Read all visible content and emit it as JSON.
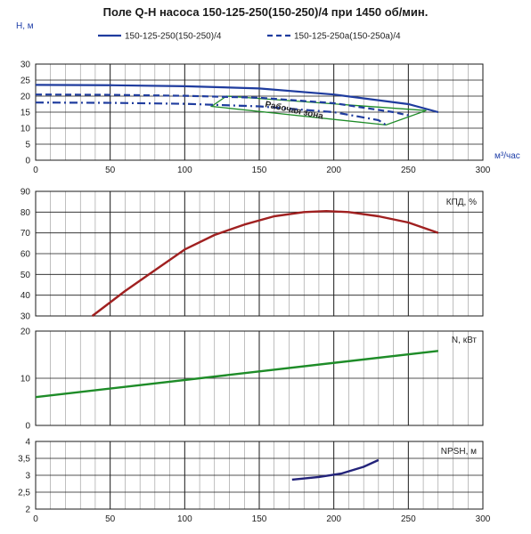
{
  "title": "Поле Q-H насоса 150-125-250(150-250)/4 при 1450 об/мин.",
  "colors": {
    "h_main": "#1f3c9e",
    "h_alt": "#1f3c9e",
    "eff": "#a02020",
    "power": "#1e8c28",
    "npsh": "#23237a",
    "zone": "#1e8c28",
    "grid": "#1a1a1a",
    "minor_grid": "#7f7f7f"
  },
  "chart_data": [
    {
      "type": "line",
      "xlabel": "м³/час",
      "ylabel": "Н, м",
      "xlim": [
        0,
        300
      ],
      "ylim": [
        0,
        30
      ],
      "x_ticks": [
        "0",
        "50",
        "100",
        "150",
        "200",
        "250",
        "300"
      ],
      "y_ticks": [
        "0",
        "5",
        "10",
        "15",
        "20",
        "25",
        "30"
      ],
      "grid": true,
      "legend": "top",
      "series": [
        {
          "name": "150-125-250(150-250)/4",
          "style": "solid",
          "points": [
            [
              0,
              23.5
            ],
            [
              50,
              23.4
            ],
            [
              100,
              23.1
            ],
            [
              150,
              22.4
            ],
            [
              200,
              20.5
            ],
            [
              250,
              17.5
            ],
            [
              270,
              15.0
            ]
          ]
        },
        {
          "name": "150-125-250а(150-250а)/4",
          "style": "dashed",
          "points": [
            [
              0,
              20.5
            ],
            [
              50,
              20.4
            ],
            [
              100,
              20.1
            ],
            [
              150,
              19.5
            ],
            [
              200,
              17.8
            ],
            [
              240,
              15.0
            ],
            [
              250,
              14.0
            ]
          ]
        },
        {
          "name": "",
          "style": "dashed",
          "points": [
            [
              0,
              18.0
            ],
            [
              50,
              17.9
            ],
            [
              100,
              17.6
            ],
            [
              150,
              16.8
            ],
            [
              200,
              15.0
            ],
            [
              230,
              12.5
            ],
            [
              235,
              11.0
            ]
          ]
        }
      ],
      "annotations": [
        {
          "text": "Рабочая зона"
        }
      ],
      "working_zone": [
        [
          128,
          20.0
        ],
        [
          118,
          16.8
        ],
        [
          235,
          11.0
        ],
        [
          262,
          15.5
        ]
      ]
    },
    {
      "type": "line",
      "ylabel": "КПД, %",
      "xlim": [
        0,
        300
      ],
      "ylim": [
        30,
        90
      ],
      "y_ticks": [
        "30",
        "40",
        "50",
        "60",
        "70",
        "80",
        "90"
      ],
      "grid": true,
      "series": [
        {
          "name": "КПД, %",
          "points": [
            [
              38,
              30
            ],
            [
              60,
              42
            ],
            [
              80,
              52
            ],
            [
              100,
              62
            ],
            [
              120,
              69
            ],
            [
              140,
              74
            ],
            [
              160,
              78
            ],
            [
              180,
              80
            ],
            [
              195,
              80.5
            ],
            [
              210,
              80
            ],
            [
              230,
              78
            ],
            [
              250,
              75
            ],
            [
              270,
              70
            ]
          ]
        }
      ]
    },
    {
      "type": "line",
      "ylabel": "N, кВт",
      "xlim": [
        0,
        300
      ],
      "ylim": [
        0,
        20
      ],
      "y_ticks": [
        "0",
        "10",
        "20"
      ],
      "grid": true,
      "series": [
        {
          "name": "N, кВт",
          "points": [
            [
              0,
              6.0
            ],
            [
              270,
              15.8
            ]
          ]
        }
      ]
    },
    {
      "type": "line",
      "ylabel": "NPSH, м",
      "xlim": [
        0,
        300
      ],
      "ylim": [
        2,
        4
      ],
      "x_ticks": [
        "0",
        "50",
        "100",
        "150",
        "200",
        "250",
        "300"
      ],
      "y_ticks": [
        "2",
        "2,5",
        "3",
        "3,5",
        "4"
      ],
      "grid": true,
      "series": [
        {
          "name": "NPSH, м",
          "points": [
            [
              172,
              2.87
            ],
            [
              190,
              2.95
            ],
            [
              205,
              3.05
            ],
            [
              220,
              3.25
            ],
            [
              230,
              3.45
            ]
          ]
        }
      ]
    }
  ]
}
